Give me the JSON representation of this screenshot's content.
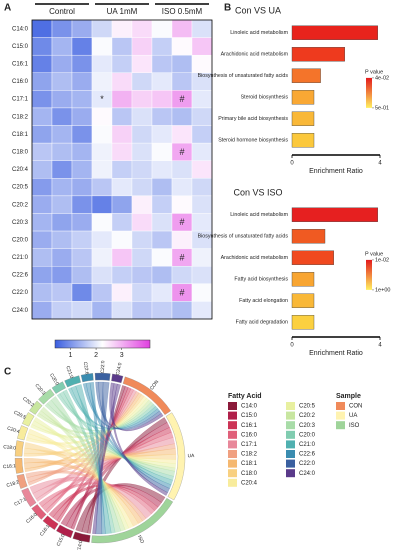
{
  "panel_labels": [
    "A",
    "B",
    "C"
  ],
  "chart_data": [
    {
      "type": "heatmap",
      "rows": [
        "C14:0",
        "C15:0",
        "C16:1",
        "C16:0",
        "C17:1",
        "C18:2",
        "C18:1",
        "C18:0",
        "C20:4",
        "C20:5",
        "C20:2",
        "C20:3",
        "C20:0",
        "C21:0",
        "C22:6",
        "C22:0",
        "C24:0"
      ],
      "groups": [
        "Control",
        "UA 1mM",
        "ISO 0.5mM"
      ],
      "values": [
        [
          0.6,
          1.0,
          1.3,
          1.8,
          2.4,
          2.6,
          2.2,
          2.9,
          1.9
        ],
        [
          0.9,
          1.4,
          0.8,
          2.2,
          1.6,
          2.7,
          1.7,
          2.3,
          2.8
        ],
        [
          0.8,
          1.3,
          1.0,
          2.0,
          1.7,
          2.5,
          1.6,
          1.5,
          2.3
        ],
        [
          1.2,
          1.5,
          1.3,
          2.1,
          2.6,
          1.8,
          2.0,
          1.6,
          1.9
        ],
        [
          1.0,
          1.3,
          1.4,
          2.0,
          3.0,
          2.7,
          2.8,
          3.2,
          2.0
        ],
        [
          1.4,
          1.0,
          1.3,
          2.3,
          1.6,
          1.9,
          1.6,
          1.5,
          1.8
        ],
        [
          1.2,
          1.4,
          1.0,
          2.2,
          2.7,
          1.8,
          2.0,
          2.5,
          1.7
        ],
        [
          1.6,
          1.5,
          1.4,
          2.1,
          2.6,
          1.9,
          2.2,
          3.1,
          2.0
        ],
        [
          1.5,
          1.0,
          1.4,
          2.1,
          1.7,
          1.8,
          2.0,
          1.9,
          2.5
        ],
        [
          1.1,
          1.4,
          1.3,
          1.6,
          2.0,
          1.8,
          1.5,
          2.0,
          1.8
        ],
        [
          1.3,
          1.5,
          1.0,
          0.8,
          1.2,
          2.4,
          1.7,
          2.3,
          1.9
        ],
        [
          1.4,
          1.2,
          1.3,
          2.2,
          1.7,
          2.6,
          1.9,
          3.2,
          2.0
        ],
        [
          1.3,
          1.5,
          1.7,
          2.0,
          2.2,
          1.8,
          1.6,
          2.4,
          1.9
        ],
        [
          1.5,
          1.3,
          1.6,
          2.1,
          2.8,
          1.8,
          2.2,
          3.1,
          2.1
        ],
        [
          1.2,
          1.1,
          1.5,
          1.9,
          1.7,
          1.6,
          1.5,
          1.8,
          1.9
        ],
        [
          1.5,
          1.6,
          0.9,
          1.6,
          2.4,
          1.8,
          2.0,
          3.3,
          2.2
        ],
        [
          1.3,
          1.7,
          1.8,
          1.4,
          1.9,
          1.6,
          1.7,
          1.5,
          2.0
        ]
      ],
      "cell_labels": [
        [
          null,
          null,
          null,
          null,
          null,
          null,
          null,
          null,
          null
        ],
        [
          null,
          null,
          null,
          null,
          null,
          null,
          null,
          null,
          null
        ],
        [
          null,
          null,
          null,
          null,
          null,
          null,
          null,
          null,
          null
        ],
        [
          null,
          null,
          null,
          null,
          null,
          null,
          null,
          null,
          null
        ],
        [
          null,
          null,
          null,
          "*",
          null,
          null,
          null,
          "#",
          null
        ],
        [
          null,
          null,
          null,
          null,
          null,
          null,
          null,
          null,
          null
        ],
        [
          null,
          null,
          null,
          null,
          null,
          null,
          null,
          null,
          null
        ],
        [
          null,
          null,
          null,
          null,
          null,
          null,
          null,
          "#",
          null
        ],
        [
          null,
          null,
          null,
          null,
          null,
          null,
          null,
          null,
          null
        ],
        [
          null,
          null,
          null,
          null,
          null,
          null,
          null,
          null,
          null
        ],
        [
          null,
          null,
          null,
          null,
          null,
          null,
          null,
          null,
          null
        ],
        [
          null,
          null,
          null,
          null,
          null,
          null,
          null,
          "#",
          null
        ],
        [
          null,
          null,
          null,
          null,
          null,
          null,
          null,
          null,
          null
        ],
        [
          null,
          null,
          null,
          null,
          null,
          null,
          null,
          "#",
          null
        ],
        [
          null,
          null,
          null,
          null,
          null,
          null,
          null,
          null,
          null
        ],
        [
          null,
          null,
          null,
          null,
          null,
          null,
          null,
          "#",
          null
        ],
        [
          null,
          null,
          null,
          null,
          null,
          null,
          null,
          null,
          null
        ]
      ],
      "clim": [
        0.4,
        4.1
      ],
      "colorbar_ticks": [
        1,
        2,
        3
      ],
      "colors": [
        "#3a5ee0",
        "#ffffff",
        "#e040e0"
      ]
    },
    {
      "type": "bar",
      "orientation": "horizontal",
      "title": "Con VS UA",
      "categories": [
        "Linoleic acid metabolism",
        "Arachidonic acid metabolism",
        "Biosynthesis of unsaturated fatty acids",
        "Steroid biosynthesis",
        "Primary bile acid biosynthesis",
        "Steroid hormone biosynthesis"
      ],
      "values": [
        3.9,
        2.4,
        1.3,
        1.0,
        1.0,
        1.0
      ],
      "colors": [
        "#e8231c",
        "#ee3a1e",
        "#f4742a",
        "#f9a834",
        "#f9b838",
        "#fbc83c"
      ],
      "xlim": [
        0,
        4
      ],
      "xticks": [
        0,
        4
      ],
      "xlabel": "Enrichment Ratio",
      "colorbar": {
        "title": "P value",
        "colors": [
          "#e31a1c",
          "#fff060"
        ],
        "clim": [
          0.04,
          0.5
        ],
        "ticks": [
          {
            "value": 0.04,
            "label": "4e-02"
          },
          {
            "value": 0.5,
            "label": "5e-01"
          }
        ]
      }
    },
    {
      "type": "bar",
      "orientation": "horizontal",
      "title": "Con VS ISO",
      "categories": [
        "Linoleic acid metabolism",
        "Biosynthesis of unsaturated fatty acids",
        "Arachidonic acid metabolism",
        "Fatty acid biosynthesis",
        "Fatty acid elongation",
        "Fatty acid degradation"
      ],
      "values": [
        3.9,
        1.5,
        1.9,
        1.0,
        1.0,
        1.0
      ],
      "colors": [
        "#e62020",
        "#f05a22",
        "#f0491f",
        "#f8a532",
        "#f9b838",
        "#fbd040"
      ],
      "xlim": [
        0,
        4
      ],
      "xticks": [
        0,
        4
      ],
      "xlabel": "Enrichment Ratio",
      "colorbar": {
        "title": "P value",
        "colors": [
          "#e31a1c",
          "#fff060"
        ],
        "clim": [
          0.01,
          1
        ],
        "ticks": [
          {
            "value": 0.01,
            "label": "1e-02"
          },
          {
            "value": 1,
            "label": "1e+00"
          }
        ]
      }
    },
    {
      "type": "chord",
      "fatty_acid_title": "Fatty Acid",
      "sample_title": "Sample",
      "fatty_acids": [
        {
          "name": "C14:0",
          "color": "#8b1a3a"
        },
        {
          "name": "C15:0",
          "color": "#b0204a"
        },
        {
          "name": "C16:1",
          "color": "#cc3355"
        },
        {
          "name": "C16:0",
          "color": "#e0607a"
        },
        {
          "name": "C17:1",
          "color": "#e8889a"
        },
        {
          "name": "C18:2",
          "color": "#f0a080"
        },
        {
          "name": "C18:1",
          "color": "#f5b870"
        },
        {
          "name": "C18:0",
          "color": "#f8d080"
        },
        {
          "name": "C20:4",
          "color": "#f8ec9c"
        },
        {
          "name": "C20:5",
          "color": "#e8f0a0"
        },
        {
          "name": "C20:2",
          "color": "#c8e6a0"
        },
        {
          "name": "C20:3",
          "color": "#a8dca8"
        },
        {
          "name": "C20:0",
          "color": "#80ccb0"
        },
        {
          "name": "C21:0",
          "color": "#50b0b0"
        },
        {
          "name": "C22:6",
          "color": "#3a8cb0"
        },
        {
          "name": "C22:0",
          "color": "#3a60a0"
        },
        {
          "name": "C24:0",
          "color": "#5a3a8a"
        }
      ],
      "samples": [
        {
          "name": "CON",
          "color": "#f08a5a"
        },
        {
          "name": "UA",
          "color": "#fff3b0"
        },
        {
          "name": "ISO",
          "color": "#9fd49a"
        }
      ],
      "flows": [
        [
          1,
          1.9,
          2.1
        ],
        [
          1,
          1.8,
          1.9
        ],
        [
          1,
          1.7,
          1.6
        ],
        [
          1,
          1.8,
          1.5
        ],
        [
          1,
          2.1,
          2.3
        ],
        [
          1,
          1.6,
          1.4
        ],
        [
          1,
          1.9,
          1.6
        ],
        [
          1,
          1.7,
          1.9
        ],
        [
          1,
          1.4,
          1.6
        ],
        [
          1,
          1.4,
          1.3
        ],
        [
          1,
          1.1,
          1.5
        ],
        [
          1,
          1.7,
          1.9
        ],
        [
          1,
          1.3,
          1.3
        ],
        [
          1,
          1.6,
          1.9
        ],
        [
          1,
          1.3,
          1.2
        ],
        [
          1,
          1.5,
          2.0
        ],
        [
          1,
          1.1,
          1.1
        ]
      ]
    }
  ]
}
